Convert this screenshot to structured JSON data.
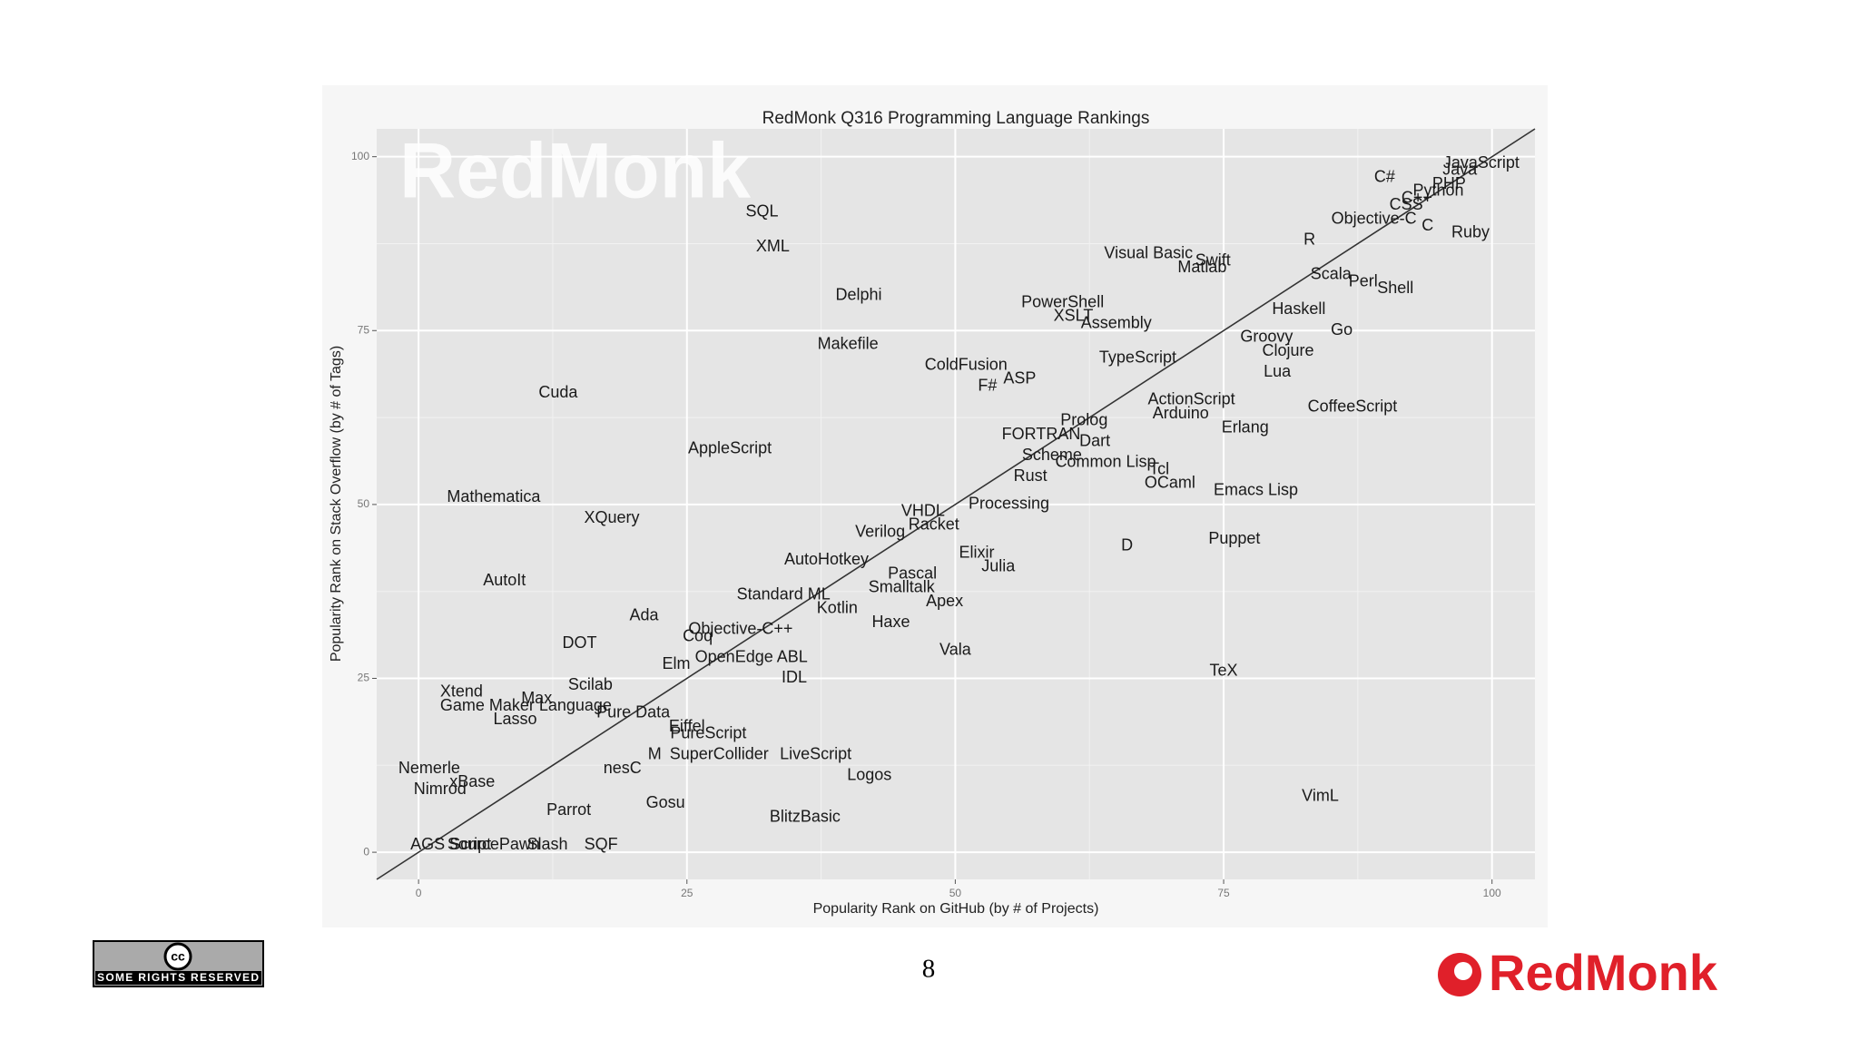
{
  "chart_data": {
    "type": "scatter",
    "title": "RedMonk Q316 Programming Language Rankings",
    "watermark": "RedMonk",
    "x_label": "Popularity Rank on GitHub (by # of Projects)",
    "y_label": "Popularity Rank on Stack Overflow (by # of Tags)",
    "xlim": [
      -3.9,
      104
    ],
    "ylim": [
      -3.9,
      104
    ],
    "xticks": [
      0,
      25,
      50,
      75,
      100
    ],
    "yticks": [
      0,
      25,
      50,
      75,
      100
    ],
    "grid": true,
    "diagonal": true,
    "color": "#1a1a1a",
    "labels": [
      "JavaScript",
      "Java",
      "C#",
      "PHP",
      "Python",
      "C++",
      "CSS",
      "Objective-C",
      "C",
      "Ruby",
      "R",
      "Visual Basic",
      "Swift",
      "Matlab",
      "Scala",
      "Perl",
      "Shell",
      "SQL",
      "XML",
      "Delphi",
      "PowerShell",
      "XSLT",
      "Assembly",
      "Haskell",
      "Go",
      "Groovy",
      "Makefile",
      "TypeScript",
      "Clojure",
      "ColdFusion",
      "ASP",
      "F#",
      "Lua",
      "Cuda",
      "ActionScript",
      "Arduino",
      "CoffeeScript",
      "Prolog",
      "Erlang",
      "FORTRAN",
      "Dart",
      "AppleScript",
      "Scheme",
      "Common Lisp",
      "Tcl",
      "Rust",
      "OCaml",
      "Emacs Lisp",
      "Mathematica",
      "Processing",
      "XQuery",
      "VHDL",
      "Racket",
      "Verilog",
      "D",
      "Puppet",
      "AutoHotkey",
      "Elixir",
      "Julia",
      "AutoIt",
      "Pascal",
      "Smalltalk",
      "Standard ML",
      "Apex",
      "Kotlin",
      "Ada",
      "Haxe",
      "Objective-C++",
      "Coq",
      "DOT",
      "Vala",
      "Elm",
      "OpenEdge ABL",
      "IDL",
      "TeX",
      "Scilab",
      "Xtend",
      "Max",
      "Game Maker Language",
      "Pure Data",
      "Lasso",
      "Eiffel",
      "PureScript",
      "M",
      "SuperCollider",
      "LiveScript",
      "Nemerle",
      "nesC",
      "Logos",
      "xBase",
      "Nimrod",
      "VimL",
      "Parrot",
      "Gosu",
      "BlitzBasic",
      "AGS Script",
      "SourcePawn",
      "Slash",
      "SQF"
    ],
    "x": [
      99,
      97,
      90,
      96,
      95,
      93,
      92,
      89,
      94,
      98,
      83,
      68,
      74,
      73,
      85,
      88,
      91,
      32,
      33,
      41,
      60,
      61,
      65,
      82,
      86,
      79,
      40,
      67,
      81,
      51,
      56,
      53,
      80,
      13,
      72,
      71,
      87,
      62,
      77,
      58,
      63,
      29,
      59,
      64,
      69,
      57,
      70,
      78,
      7,
      55,
      18,
      47,
      48,
      43,
      66,
      76,
      38,
      52,
      54,
      8,
      46,
      45,
      34,
      49,
      39,
      21,
      44,
      30,
      26,
      15,
      50,
      24,
      31,
      35,
      75,
      16,
      4,
      11,
      10,
      20,
      9,
      25,
      27,
      22,
      28,
      37,
      1,
      19,
      42,
      5,
      2,
      84,
      14,
      23,
      36,
      3,
      7,
      12,
      17
    ],
    "values": [
      99,
      98,
      97,
      96,
      95,
      94,
      93,
      91,
      90,
      89,
      88,
      86,
      85,
      84,
      83,
      82,
      81,
      92,
      87,
      80,
      79,
      77,
      76,
      78,
      75,
      74,
      73,
      71,
      72,
      70,
      68,
      67,
      69,
      66,
      65,
      63,
      64,
      62,
      61,
      60,
      59,
      58,
      57,
      56,
      55,
      54,
      53,
      52,
      51,
      50,
      48,
      49,
      47,
      46,
      44,
      45,
      42,
      43,
      41,
      39,
      40,
      38,
      37,
      36,
      35,
      34,
      33,
      32,
      31,
      30,
      29,
      27,
      28,
      25,
      26,
      24,
      23,
      22,
      21,
      20,
      19,
      18,
      17,
      14,
      14,
      14,
      12,
      12,
      11,
      10,
      9,
      8,
      6,
      7,
      5,
      1,
      1,
      1,
      1
    ]
  },
  "slide": {
    "page_number": "8",
    "logo": "RedMonk",
    "license": "SOME RIGHTS RESERVED",
    "license_mark": "cc"
  }
}
